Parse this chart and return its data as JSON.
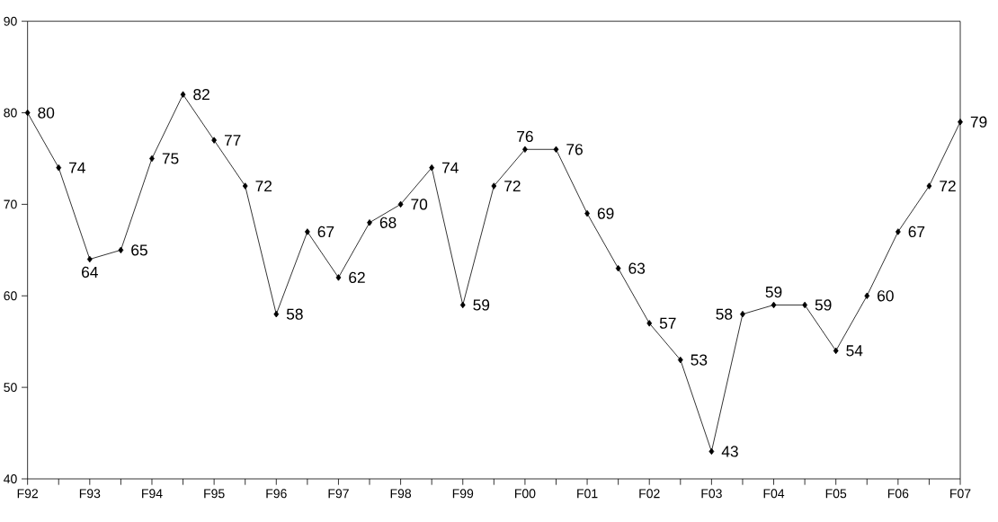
{
  "chart_data": {
    "type": "line",
    "categories": [
      "F92",
      null,
      "F93",
      null,
      "F94",
      null,
      "F95",
      null,
      "F96",
      null,
      "F97",
      null,
      "F98",
      null,
      "F99",
      null,
      "F00",
      null,
      "F01",
      null,
      "F02",
      null,
      "F03",
      null,
      "F04",
      null,
      "F05",
      null,
      "F06",
      null,
      "F07"
    ],
    "values": [
      80,
      74,
      64,
      65,
      75,
      82,
      77,
      72,
      58,
      67,
      62,
      68,
      70,
      74,
      59,
      72,
      76,
      76,
      69,
      63,
      57,
      53,
      43,
      58,
      59,
      59,
      54,
      60,
      67,
      72,
      79
    ],
    "color": "#000000",
    "marker": "diamond",
    "line_style": "solid",
    "ylim": [
      40,
      90
    ],
    "yticks": [
      40,
      50,
      60,
      70,
      80,
      90
    ],
    "data_labels": true,
    "grid": false
  }
}
